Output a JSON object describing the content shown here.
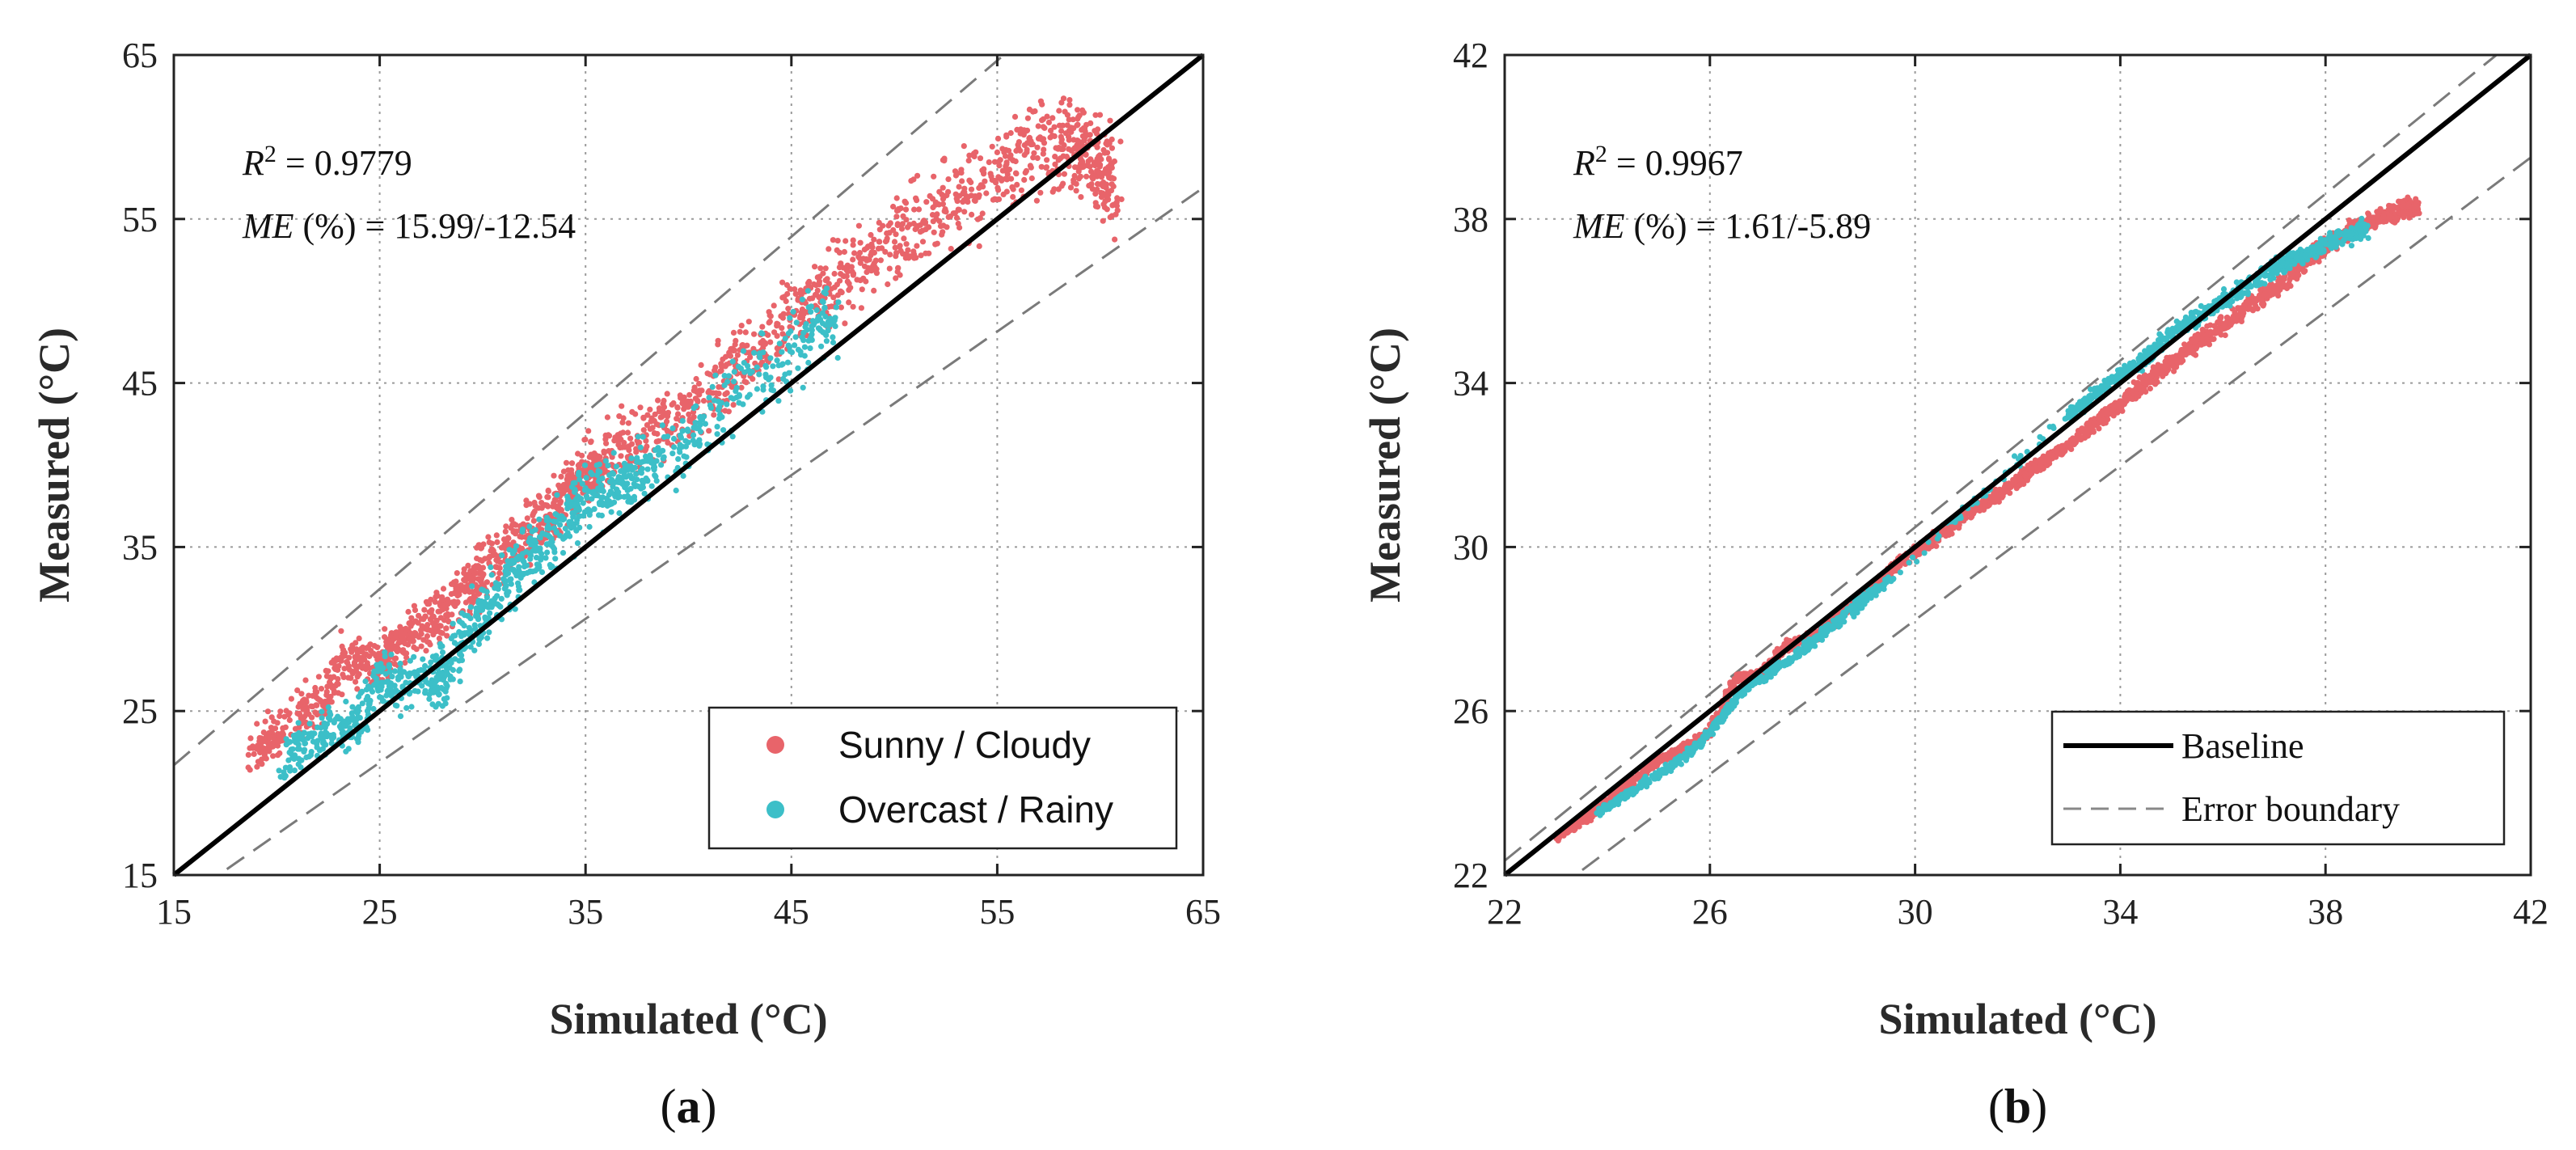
{
  "chart_data": [
    {
      "type": "scatter",
      "panel_label": "a",
      "xlabel": "Simulated (°C)",
      "ylabel": "Measured (°C)",
      "xlim": [
        15,
        65
      ],
      "ylim": [
        15,
        65
      ],
      "xticks": [
        15,
        25,
        35,
        45,
        55,
        65
      ],
      "yticks": [
        15,
        25,
        35,
        45,
        55,
        65
      ],
      "grid": true,
      "annotation": {
        "r2_symbol": "R",
        "r2_sup": "2",
        "r2_value": " = 0.9779",
        "me_symbol": "ME",
        "me_value": " (%) = 15.99/-12.54"
      },
      "baseline": {
        "x": [
          15,
          65
        ],
        "y": [
          15,
          65
        ]
      },
      "error_boundaries": [
        {
          "x": [
            15,
            65
          ],
          "y": [
            21.7,
            75.4
          ]
        },
        {
          "x": [
            15,
            65
          ],
          "y": [
            13.1,
            56.9
          ]
        }
      ],
      "legend": {
        "position": "bottom-right",
        "entries": [
          {
            "label": "Sunny / Cloudy",
            "color": "#e8646a",
            "marker": "circle"
          },
          {
            "label": "Overcast / Rainy",
            "color": "#3cbfc8",
            "marker": "circle"
          }
        ]
      },
      "series": [
        {
          "name": "Sunny / Cloudy",
          "color": "#e8646a",
          "bands": [
            [
              19,
              22.5
            ],
            [
              20,
              23.5
            ],
            [
              22,
              25.5
            ],
            [
              23.5,
              28.3
            ],
            [
              25,
              27.8
            ],
            [
              26,
              29.2
            ],
            [
              27.5,
              30.5
            ],
            [
              29,
              32
            ],
            [
              30,
              33.5
            ],
            [
              31.5,
              35
            ],
            [
              33,
              36.5
            ],
            [
              34,
              38
            ],
            [
              35,
              39.5
            ],
            [
              36,
              40.5
            ],
            [
              38,
              42
            ],
            [
              40,
              43.5
            ],
            [
              42,
              45.5
            ],
            [
              44,
              48
            ],
            [
              46,
              50
            ],
            [
              48,
              52
            ],
            [
              50,
              54
            ],
            [
              52,
              55.5
            ],
            [
              54,
              57
            ],
            [
              56,
              58.5
            ],
            [
              58,
              59.5
            ],
            [
              59,
              59.5
            ],
            [
              60,
              58
            ],
            [
              60.7,
              57
            ]
          ]
        },
        {
          "name": "Overcast / Rainy",
          "color": "#3cbfc8",
          "bands": [
            [
              20.5,
              22
            ],
            [
              21.5,
              23
            ],
            [
              23,
              24
            ],
            [
              24,
              24.5
            ],
            [
              25,
              27
            ],
            [
              26,
              26.5
            ],
            [
              27.5,
              27
            ],
            [
              28,
              26.5
            ],
            [
              29,
              29.5
            ],
            [
              30,
              31
            ],
            [
              31,
              33
            ],
            [
              32,
              34
            ],
            [
              33,
              35
            ],
            [
              34,
              36.5
            ],
            [
              35,
              38
            ],
            [
              36,
              38.5
            ],
            [
              37,
              39
            ],
            [
              38,
              40
            ],
            [
              40,
              41.5
            ],
            [
              42,
              44
            ],
            [
              44,
              46
            ],
            [
              46,
              48
            ],
            [
              47,
              49
            ]
          ]
        }
      ]
    },
    {
      "type": "scatter",
      "panel_label": "b",
      "xlabel": "Simulated (°C)",
      "ylabel": "Measured (°C)",
      "xlim": [
        22,
        42
      ],
      "ylim": [
        22,
        42
      ],
      "xticks": [
        22,
        26,
        30,
        34,
        38,
        42
      ],
      "yticks": [
        22,
        26,
        30,
        34,
        38,
        42
      ],
      "grid": true,
      "annotation": {
        "r2_symbol": "R",
        "r2_sup": "2",
        "r2_value": " = 0.9967",
        "me_symbol": "ME",
        "me_value": " (%) = 1.61/-5.89"
      },
      "baseline": {
        "x": [
          22,
          42
        ],
        "y": [
          22,
          42
        ]
      },
      "error_boundaries": [
        {
          "x": [
            22,
            42
          ],
          "y": [
            22.35,
            42.68
          ]
        },
        {
          "x": [
            22,
            42
          ],
          "y": [
            20.7,
            39.5
          ]
        }
      ],
      "legend": {
        "position": "bottom-right",
        "entries": [
          {
            "label": "Baseline",
            "color": "#000000",
            "marker": "solid-line"
          },
          {
            "label": "Error boundary",
            "color": "#888888",
            "marker": "dashed-line"
          }
        ]
      },
      "series": [
        {
          "name": "Sunny / Cloudy",
          "color": "#e8646a",
          "bands": [
            [
              23,
              22.9
            ],
            [
              23.5,
              23.3
            ],
            [
              24,
              23.8
            ],
            [
              24.5,
              24.3
            ],
            [
              25,
              24.8
            ],
            [
              25.5,
              25.1
            ],
            [
              26,
              25.5
            ],
            [
              26.5,
              26.8
            ],
            [
              27,
              26.9
            ],
            [
              27.5,
              27.6
            ],
            [
              28,
              27.8
            ],
            [
              28.5,
              28.3
            ],
            [
              29,
              28.8
            ],
            [
              29.5,
              29.4
            ],
            [
              30,
              29.9
            ],
            [
              30.5,
              30.3
            ],
            [
              31,
              30.8
            ],
            [
              31.5,
              31.2
            ],
            [
              32,
              31.6
            ],
            [
              32.5,
              32.1
            ],
            [
              33,
              32.5
            ],
            [
              33.5,
              33
            ],
            [
              34,
              33.5
            ],
            [
              34.5,
              34
            ],
            [
              35,
              34.5
            ],
            [
              35.5,
              35
            ],
            [
              36,
              35.4
            ],
            [
              36.5,
              35.9
            ],
            [
              37,
              36.3
            ],
            [
              37.5,
              36.8
            ],
            [
              38,
              37.3
            ],
            [
              38.5,
              37.7
            ],
            [
              39,
              38
            ],
            [
              39.5,
              38.2
            ],
            [
              39.8,
              38.3
            ]
          ]
        },
        {
          "name": "Overcast / Rainy",
          "color": "#3cbfc8",
          "bands": [
            [
              23.8,
              23.5
            ],
            [
              24.3,
              23.9
            ],
            [
              24.8,
              24.3
            ],
            [
              25.3,
              24.7
            ],
            [
              25.8,
              25.2
            ],
            [
              26.2,
              25.8
            ],
            [
              26.5,
              26.3
            ],
            [
              27,
              26.8
            ],
            [
              27.5,
              27.2
            ],
            [
              28,
              27.7
            ],
            [
              28.5,
              28.2
            ],
            [
              29,
              28.7
            ],
            [
              29.5,
              29.2
            ],
            [
              33,
              33.2
            ],
            [
              33.5,
              33.7
            ],
            [
              34,
              34.2
            ],
            [
              34.5,
              34.6
            ],
            [
              35,
              35.2
            ],
            [
              35.5,
              35.6
            ],
            [
              36,
              36
            ],
            [
              36.5,
              36.4
            ],
            [
              37,
              36.8
            ],
            [
              37.5,
              37.1
            ],
            [
              38,
              37.4
            ],
            [
              38.5,
              37.6
            ],
            [
              38.8,
              37.8
            ]
          ]
        }
      ]
    }
  ]
}
